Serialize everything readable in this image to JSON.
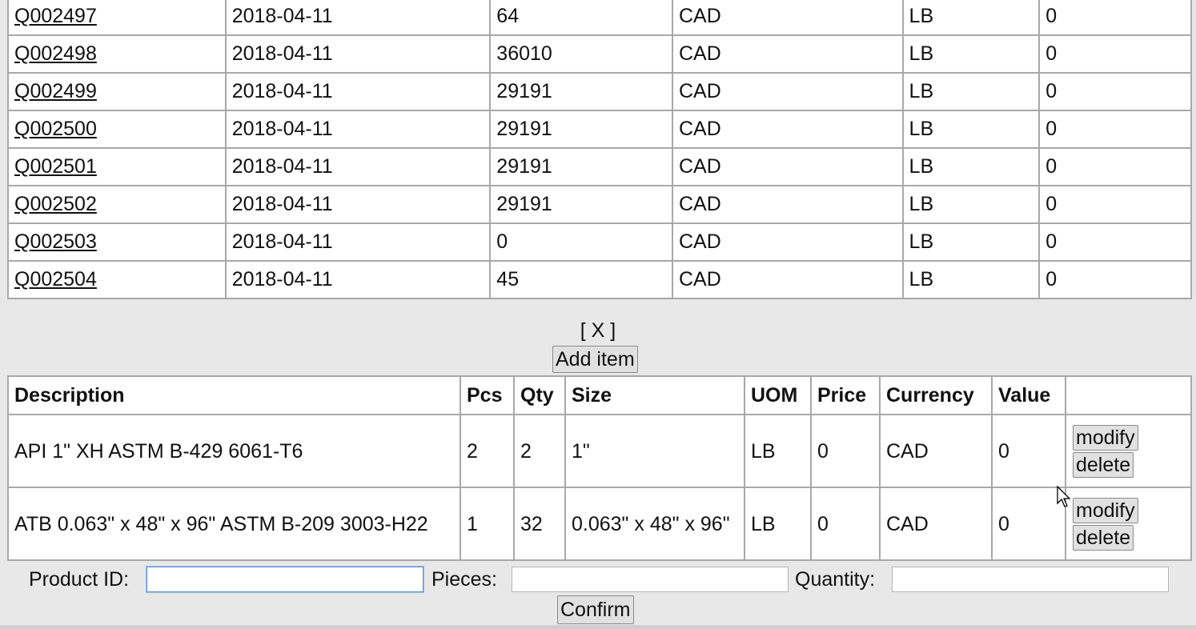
{
  "quotes": {
    "rows": [
      {
        "id": "Q002497",
        "date": "2018-04-11",
        "weight": "64",
        "currency": "CAD",
        "uom": "LB",
        "value": "0"
      },
      {
        "id": "Q002498",
        "date": "2018-04-11",
        "weight": "36010",
        "currency": "CAD",
        "uom": "LB",
        "value": "0"
      },
      {
        "id": "Q002499",
        "date": "2018-04-11",
        "weight": "29191",
        "currency": "CAD",
        "uom": "LB",
        "value": "0"
      },
      {
        "id": "Q002500",
        "date": "2018-04-11",
        "weight": "29191",
        "currency": "CAD",
        "uom": "LB",
        "value": "0"
      },
      {
        "id": "Q002501",
        "date": "2018-04-11",
        "weight": "29191",
        "currency": "CAD",
        "uom": "LB",
        "value": "0"
      },
      {
        "id": "Q002502",
        "date": "2018-04-11",
        "weight": "29191",
        "currency": "CAD",
        "uom": "LB",
        "value": "0"
      },
      {
        "id": "Q002503",
        "date": "2018-04-11",
        "weight": "0",
        "currency": "CAD",
        "uom": "LB",
        "value": "0"
      },
      {
        "id": "Q002504",
        "date": "2018-04-11",
        "weight": "45",
        "currency": "CAD",
        "uom": "LB",
        "value": "0"
      }
    ]
  },
  "close_label": "[ X ]",
  "add_item_label": "Add item",
  "items": {
    "headers": {
      "description": "Description",
      "pcs": "Pcs",
      "qty": "Qty",
      "size": "Size",
      "uom": "UOM",
      "price": "Price",
      "currency": "Currency",
      "value": "Value"
    },
    "rows": [
      {
        "description": "API 1\" XH ASTM B-429 6061-T6",
        "pcs": "2",
        "qty": "2",
        "size": "1\"",
        "uom": "LB",
        "price": "0",
        "currency": "CAD",
        "value": "0",
        "modify": "modify",
        "delete": "delete"
      },
      {
        "description": "ATB 0.063\" x 48\" x 96\" ASTM B-209 3003-H22",
        "pcs": "1",
        "qty": "32",
        "size": "0.063\" x 48\" x 96\"",
        "uom": "LB",
        "price": "0",
        "currency": "CAD",
        "value": "0",
        "modify": "modify",
        "delete": "delete"
      }
    ]
  },
  "form": {
    "product_id_label": "Product ID:",
    "product_id_value": "",
    "pieces_label": "Pieces:",
    "pieces_value": "",
    "quantity_label": "Quantity:",
    "quantity_value": ""
  },
  "confirm_label": "Confirm"
}
